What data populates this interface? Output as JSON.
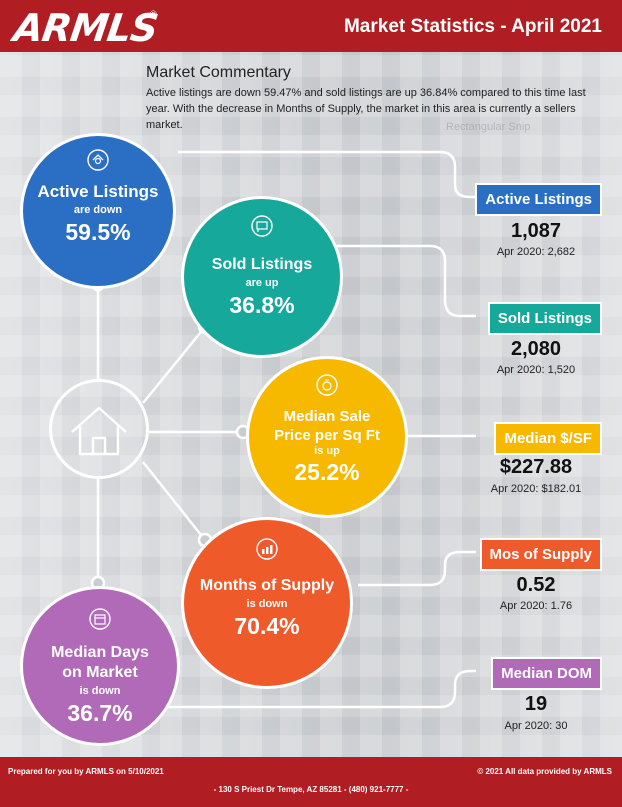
{
  "header": {
    "logo": "ARMLS",
    "logo_mark": "®",
    "title": "Market Statistics - April 2021"
  },
  "commentary": {
    "title": "Market Commentary",
    "text": "Active listings are down 59.47% and sold listings are up 36.84% compared to this time last year. With the decrease in Months of Supply, the market in this area is currently a sellers market.",
    "watermark": "Rectangular Snip"
  },
  "circles": {
    "active": {
      "title": "Active Listings",
      "sub": "are down",
      "value": "59.5%",
      "color": "#2a6fc4",
      "icon": "house-magnifier-icon"
    },
    "sold": {
      "title": "Sold Listings",
      "sub": "are up",
      "value": "36.8%",
      "color": "#16a89a",
      "icon": "sold-sign-icon"
    },
    "price": {
      "title1": "Median Sale",
      "title2": "Price per Sq Ft",
      "sub": "is up",
      "value": "25.2%",
      "color": "#f7b800",
      "icon": "money-bag-icon"
    },
    "supply": {
      "title": "Months of Supply",
      "sub": "is down",
      "value": "70.4%",
      "color": "#ee5a2a",
      "icon": "chart-icon"
    },
    "dom": {
      "title1": "Median Days",
      "title2": "on Market",
      "sub": "is down",
      "value": "36.7%",
      "color": "#b06ab8",
      "icon": "calendar-icon"
    }
  },
  "stats": {
    "active": {
      "label": "Active Listings",
      "value": "1,087",
      "prev": "Apr 2020: 2,682",
      "color": "#2a6fc4"
    },
    "sold": {
      "label": "Sold Listings",
      "value": "2,080",
      "prev": "Apr 2020: 1,520",
      "color": "#16a89a"
    },
    "price": {
      "label": "Median $/SF",
      "value": "$227.88",
      "prev": "Apr 2020: $182.01",
      "color": "#f7b800"
    },
    "supply": {
      "label": "Mos of Supply",
      "value": "0.52",
      "prev": "Apr 2020: 1.76",
      "color": "#ee5a2a"
    },
    "dom": {
      "label": "Median DOM",
      "value": "19",
      "prev": "Apr 2020: 30",
      "color": "#b06ab8"
    }
  },
  "footer": {
    "left": "Prepared for you by ARMLS on 5/10/2021",
    "right": "© 2021 All data provided by ARMLS",
    "address": "- 130 S Priest Dr   Tempe, AZ 85281 - (480) 921-7777 -"
  }
}
